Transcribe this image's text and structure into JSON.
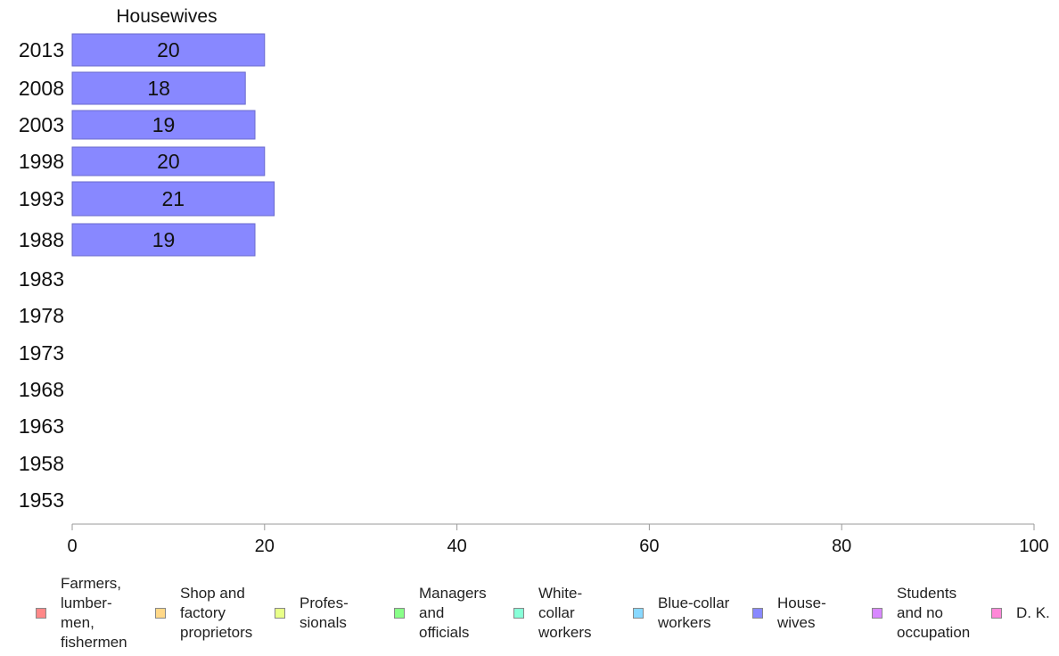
{
  "chart_data": {
    "type": "bar",
    "orientation": "horizontal",
    "title": "Housewives",
    "categories": [
      "2013",
      "2008",
      "2003",
      "1998",
      "1993",
      "1988",
      "1983",
      "1978",
      "1973",
      "1968",
      "1963",
      "1958",
      "1953"
    ],
    "series": [
      {
        "name": "Housewives",
        "values": [
          20,
          18,
          19,
          20,
          21,
          19,
          null,
          null,
          null,
          null,
          null,
          null,
          null
        ]
      }
    ],
    "data_labels": [
      "20",
      "18",
      "19",
      "20",
      "21",
      "19",
      "",
      "",
      "",
      "",
      "",
      "",
      ""
    ],
    "bar_color": "#8888ff",
    "bar_border_color": "#6a6acc",
    "xlim": [
      0,
      100
    ],
    "xticks": [
      "0",
      "20",
      "40",
      "60",
      "80",
      "100"
    ],
    "grid": false,
    "legend_position": "bottom",
    "legend": [
      {
        "label": "Farmers,\nlumber-\nmen,\nfishermen",
        "color": "#ff8888"
      },
      {
        "label": "Shop and\nfactory\nproprietors",
        "color": "#ffd888"
      },
      {
        "label": "Profes-\nsionals",
        "color": "#e8ff88"
      },
      {
        "label": "Managers\nand\nofficials",
        "color": "#88ff88"
      },
      {
        "label": "White-\ncollar\nworkers",
        "color": "#88ffd8"
      },
      {
        "label": "Blue-collar\nworkers",
        "color": "#88d8ff"
      },
      {
        "label": "House-\nwives",
        "color": "#8888ff"
      },
      {
        "label": "Students\nand no\noccupation",
        "color": "#d888ff"
      },
      {
        "label": "D. K.",
        "color": "#ff88d8"
      }
    ]
  }
}
